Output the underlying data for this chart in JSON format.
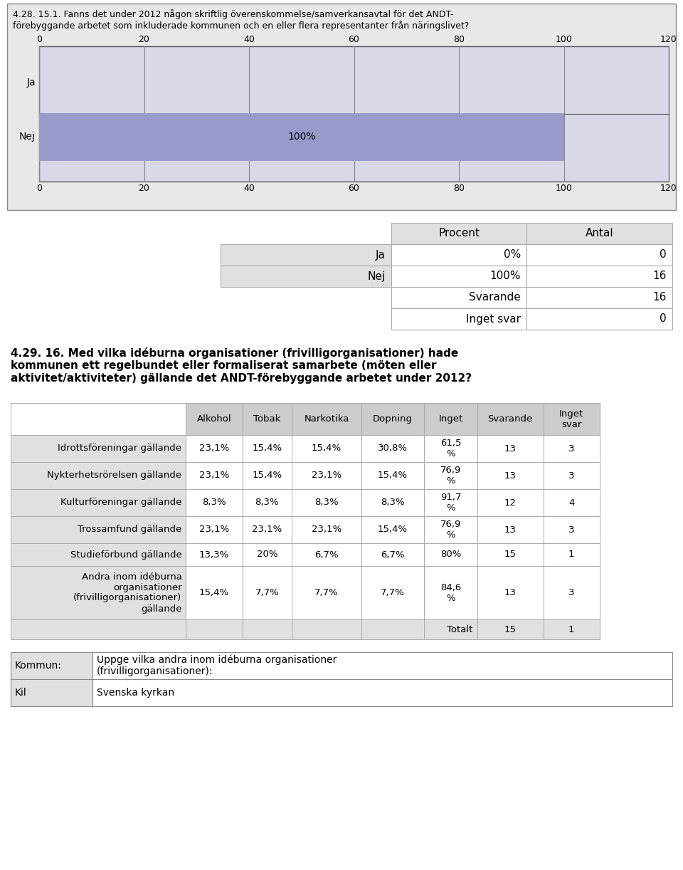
{
  "title_bar": "4.28. 15.1. Fanns det under 2012 någon skriftlig överenskommelse/samverkansavtal för det ANDT-\nförebyggande arbetet som inkluderade kommunen och en eller flera representanter från näringslivet?",
  "bar_categories": [
    "Ja",
    "Nej"
  ],
  "bar_values": [
    0,
    100
  ],
  "bar_color": "#9999cc",
  "bar_bg_color": "#d8d8e8",
  "bar_label": "100%",
  "xlim": [
    0,
    120
  ],
  "xticks": [
    0,
    20,
    40,
    60,
    80,
    100,
    120
  ],
  "table1_data": [
    [
      "Ja",
      "0%",
      "0"
    ],
    [
      "Nej",
      "100%",
      "16"
    ],
    [
      "Svarande",
      "",
      "16"
    ],
    [
      "Inget svar",
      "",
      "0"
    ]
  ],
  "section2_title": "4.29. 16. Med vilka idéburna organisationer (frivilligorganisationer) hade\nkommunen ett regelbundet eller formaliserat samarbete (möten eller\naktivitet/aktiviteter) gällande det ANDT-förebyggande arbetet under 2012?",
  "table2_headers": [
    "",
    "Alkohol",
    "Tobak",
    "Narkotika",
    "Dopning",
    "Inget",
    "Svarande",
    "Inget\nsvar"
  ],
  "table2_rows": [
    [
      "Idrottsföreningar gällande",
      "23,1%",
      "15,4%",
      "15,4%",
      "30,8%",
      "61,5\n%",
      "13",
      "3"
    ],
    [
      "Nykterhetsrörelsen gällande",
      "23,1%",
      "15,4%",
      "23,1%",
      "15,4%",
      "76,9\n%",
      "13",
      "3"
    ],
    [
      "Kulturföreningar gällande",
      "8,3%",
      "8,3%",
      "8,3%",
      "8,3%",
      "91,7\n%",
      "12",
      "4"
    ],
    [
      "Trossamfund gällande",
      "23,1%",
      "23,1%",
      "23,1%",
      "15,4%",
      "76,9\n%",
      "13",
      "3"
    ],
    [
      "Studieförbund gällande",
      "13,3%",
      "20%",
      "6,7%",
      "6,7%",
      "80%",
      "15",
      "1"
    ],
    [
      "Andra inom idéburna\norganisationer\n(frivilligorganisationer)\ngällande",
      "15,4%",
      "7,7%",
      "7,7%",
      "7,7%",
      "84,6\n%",
      "13",
      "3"
    ]
  ],
  "table2_footer": [
    "",
    "",
    "",
    "",
    "",
    "Totalt",
    "15",
    "1"
  ],
  "table3_rows": [
    [
      "Kommun:",
      "Uppge vilka andra inom idéburna organisationer\n(frivilligorganisationer):"
    ],
    [
      "Kil",
      "Svenska kyrkan"
    ]
  ],
  "outer_bg": "#e8e8e8",
  "chart_bg": "#d8d8e8",
  "white": "#ffffff",
  "light_gray": "#e0e0e0",
  "mid_gray": "#cccccc",
  "dark_gray": "#aaaaaa",
  "text_color": "#000000"
}
